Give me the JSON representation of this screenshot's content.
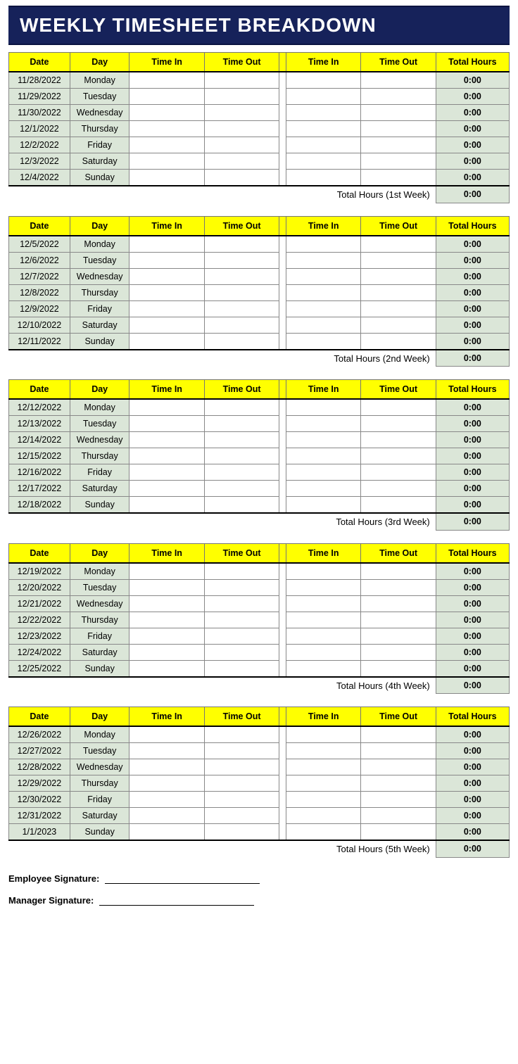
{
  "title": "WEEKLY TIMESHEET BREAKDOWN",
  "colors": {
    "title_bg": "#16225a",
    "title_text": "#ffffff",
    "header_bg": "#ffff00",
    "shaded_cell_bg": "#dbe6d8",
    "border": "#888888"
  },
  "columns": [
    "Date",
    "Day",
    "Time In",
    "Time Out",
    "Time In",
    "Time Out",
    "Total Hours"
  ],
  "weeks": [
    {
      "total_label": "Total Hours (1st Week)",
      "total_value": "0:00",
      "rows": [
        {
          "date": "11/28/2022",
          "day": "Monday",
          "in1": "",
          "out1": "",
          "in2": "",
          "out2": "",
          "total": "0:00"
        },
        {
          "date": "11/29/2022",
          "day": "Tuesday",
          "in1": "",
          "out1": "",
          "in2": "",
          "out2": "",
          "total": "0:00"
        },
        {
          "date": "11/30/2022",
          "day": "Wednesday",
          "in1": "",
          "out1": "",
          "in2": "",
          "out2": "",
          "total": "0:00"
        },
        {
          "date": "12/1/2022",
          "day": "Thursday",
          "in1": "",
          "out1": "",
          "in2": "",
          "out2": "",
          "total": "0:00"
        },
        {
          "date": "12/2/2022",
          "day": "Friday",
          "in1": "",
          "out1": "",
          "in2": "",
          "out2": "",
          "total": "0:00"
        },
        {
          "date": "12/3/2022",
          "day": "Saturday",
          "in1": "",
          "out1": "",
          "in2": "",
          "out2": "",
          "total": "0:00"
        },
        {
          "date": "12/4/2022",
          "day": "Sunday",
          "in1": "",
          "out1": "",
          "in2": "",
          "out2": "",
          "total": "0:00"
        }
      ]
    },
    {
      "total_label": "Total Hours (2nd Week)",
      "total_value": "0:00",
      "rows": [
        {
          "date": "12/5/2022",
          "day": "Monday",
          "in1": "",
          "out1": "",
          "in2": "",
          "out2": "",
          "total": "0:00"
        },
        {
          "date": "12/6/2022",
          "day": "Tuesday",
          "in1": "",
          "out1": "",
          "in2": "",
          "out2": "",
          "total": "0:00"
        },
        {
          "date": "12/7/2022",
          "day": "Wednesday",
          "in1": "",
          "out1": "",
          "in2": "",
          "out2": "",
          "total": "0:00"
        },
        {
          "date": "12/8/2022",
          "day": "Thursday",
          "in1": "",
          "out1": "",
          "in2": "",
          "out2": "",
          "total": "0:00"
        },
        {
          "date": "12/9/2022",
          "day": "Friday",
          "in1": "",
          "out1": "",
          "in2": "",
          "out2": "",
          "total": "0:00"
        },
        {
          "date": "12/10/2022",
          "day": "Saturday",
          "in1": "",
          "out1": "",
          "in2": "",
          "out2": "",
          "total": "0:00"
        },
        {
          "date": "12/11/2022",
          "day": "Sunday",
          "in1": "",
          "out1": "",
          "in2": "",
          "out2": "",
          "total": "0:00"
        }
      ]
    },
    {
      "total_label": "Total Hours (3rd Week)",
      "total_value": "0:00",
      "rows": [
        {
          "date": "12/12/2022",
          "day": "Monday",
          "in1": "",
          "out1": "",
          "in2": "",
          "out2": "",
          "total": "0:00"
        },
        {
          "date": "12/13/2022",
          "day": "Tuesday",
          "in1": "",
          "out1": "",
          "in2": "",
          "out2": "",
          "total": "0:00"
        },
        {
          "date": "12/14/2022",
          "day": "Wednesday",
          "in1": "",
          "out1": "",
          "in2": "",
          "out2": "",
          "total": "0:00"
        },
        {
          "date": "12/15/2022",
          "day": "Thursday",
          "in1": "",
          "out1": "",
          "in2": "",
          "out2": "",
          "total": "0:00"
        },
        {
          "date": "12/16/2022",
          "day": "Friday",
          "in1": "",
          "out1": "",
          "in2": "",
          "out2": "",
          "total": "0:00"
        },
        {
          "date": "12/17/2022",
          "day": "Saturday",
          "in1": "",
          "out1": "",
          "in2": "",
          "out2": "",
          "total": "0:00"
        },
        {
          "date": "12/18/2022",
          "day": "Sunday",
          "in1": "",
          "out1": "",
          "in2": "",
          "out2": "",
          "total": "0:00"
        }
      ]
    },
    {
      "total_label": "Total Hours (4th Week)",
      "total_value": "0:00",
      "rows": [
        {
          "date": "12/19/2022",
          "day": "Monday",
          "in1": "",
          "out1": "",
          "in2": "",
          "out2": "",
          "total": "0:00"
        },
        {
          "date": "12/20/2022",
          "day": "Tuesday",
          "in1": "",
          "out1": "",
          "in2": "",
          "out2": "",
          "total": "0:00"
        },
        {
          "date": "12/21/2022",
          "day": "Wednesday",
          "in1": "",
          "out1": "",
          "in2": "",
          "out2": "",
          "total": "0:00"
        },
        {
          "date": "12/22/2022",
          "day": "Thursday",
          "in1": "",
          "out1": "",
          "in2": "",
          "out2": "",
          "total": "0:00"
        },
        {
          "date": "12/23/2022",
          "day": "Friday",
          "in1": "",
          "out1": "",
          "in2": "",
          "out2": "",
          "total": "0:00"
        },
        {
          "date": "12/24/2022",
          "day": "Saturday",
          "in1": "",
          "out1": "",
          "in2": "",
          "out2": "",
          "total": "0:00"
        },
        {
          "date": "12/25/2022",
          "day": "Sunday",
          "in1": "",
          "out1": "",
          "in2": "",
          "out2": "",
          "total": "0:00"
        }
      ]
    },
    {
      "total_label": "Total Hours (5th Week)",
      "total_value": "0:00",
      "rows": [
        {
          "date": "12/26/2022",
          "day": "Monday",
          "in1": "",
          "out1": "",
          "in2": "",
          "out2": "",
          "total": "0:00"
        },
        {
          "date": "12/27/2022",
          "day": "Tuesday",
          "in1": "",
          "out1": "",
          "in2": "",
          "out2": "",
          "total": "0:00"
        },
        {
          "date": "12/28/2022",
          "day": "Wednesday",
          "in1": "",
          "out1": "",
          "in2": "",
          "out2": "",
          "total": "0:00"
        },
        {
          "date": "12/29/2022",
          "day": "Thursday",
          "in1": "",
          "out1": "",
          "in2": "",
          "out2": "",
          "total": "0:00"
        },
        {
          "date": "12/30/2022",
          "day": "Friday",
          "in1": "",
          "out1": "",
          "in2": "",
          "out2": "",
          "total": "0:00"
        },
        {
          "date": "12/31/2022",
          "day": "Saturday",
          "in1": "",
          "out1": "",
          "in2": "",
          "out2": "",
          "total": "0:00"
        },
        {
          "date": "1/1/2023",
          "day": "Sunday",
          "in1": "",
          "out1": "",
          "in2": "",
          "out2": "",
          "total": "0:00"
        }
      ]
    }
  ],
  "signatures": {
    "employee_label": "Employee Signature:",
    "manager_label": "Manager Signature:"
  }
}
